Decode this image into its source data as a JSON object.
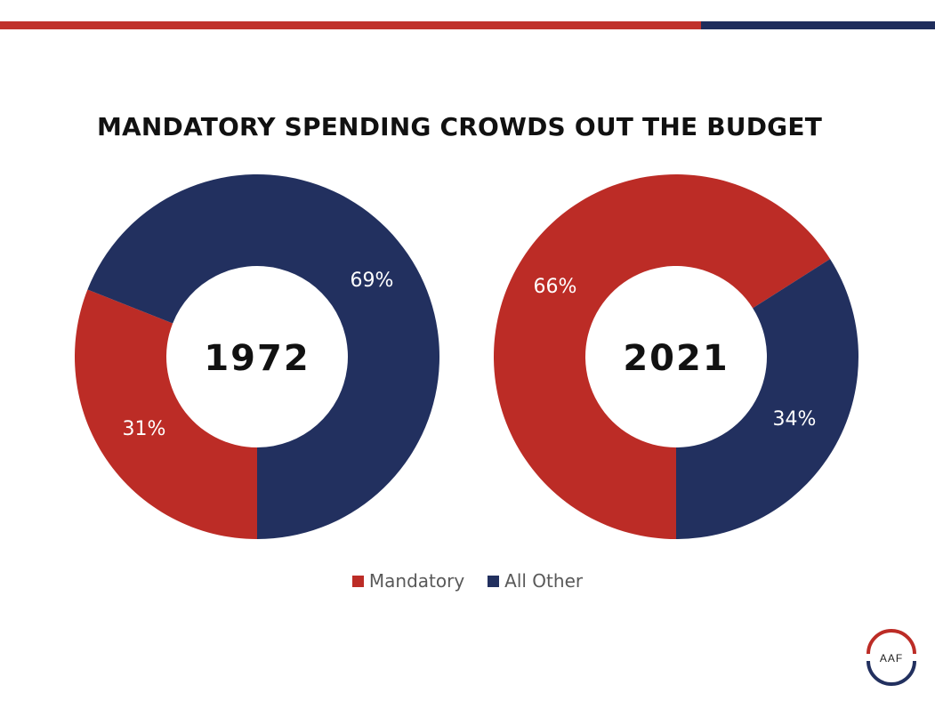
{
  "colors": {
    "mandatory": "#bc2c26",
    "all_other": "#22305f",
    "top_red": "#c0322b",
    "top_blue": "#1f2d5c"
  },
  "chart_data": [
    {
      "type": "pie",
      "title": "MANDATORY SPENDING CROWDS OUT THE BUDGET",
      "center_label": "1972",
      "categories": [
        "Mandatory",
        "All Other"
      ],
      "values": [
        31,
        69
      ],
      "labels": [
        "31%",
        "69%"
      ]
    },
    {
      "type": "pie",
      "title": "MANDATORY SPENDING CROWDS OUT THE BUDGET",
      "center_label": "2021",
      "categories": [
        "Mandatory",
        "All Other"
      ],
      "values": [
        66,
        34
      ],
      "labels": [
        "66%",
        "34%"
      ]
    }
  ],
  "title": "MANDATORY SPENDING CROWDS OUT THE BUDGET",
  "legend": {
    "mandatory": "Mandatory",
    "all_other": "All Other",
    "placement": "bottom"
  },
  "logo": {
    "text": "AAF"
  }
}
